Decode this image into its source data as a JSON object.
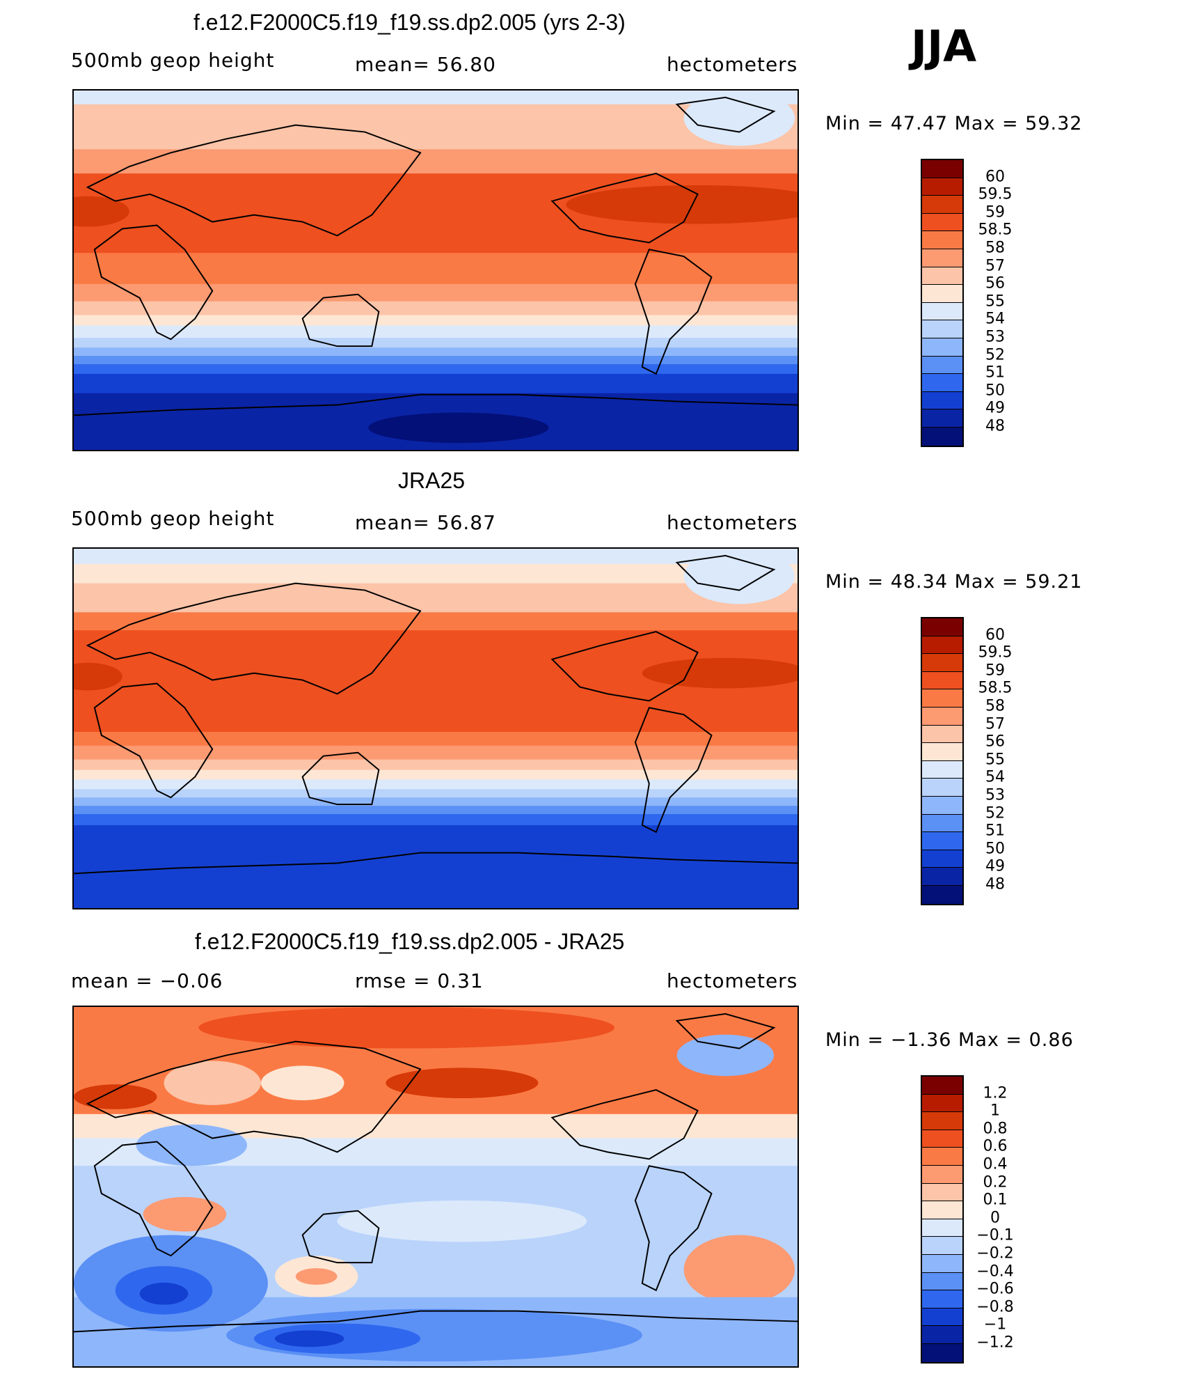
{
  "season": "JJA",
  "panels": [
    {
      "id": "model",
      "title": "f.e12.F2000C5.f19_f19.ss.dp2.005 (yrs 2-3)",
      "left_label": "500mb  geop  height",
      "center_label": "mean=   56.80",
      "right_label": "hectometers",
      "minmax": "Min  =    47.47  Max  =    59.32",
      "colorbar_labels": [
        "60",
        "59.5",
        "59",
        "58.5",
        "58",
        "57",
        "56",
        "55",
        "54",
        "53",
        "52",
        "51",
        "50",
        "49",
        "48"
      ],
      "colors": [
        "#7a0000",
        "#b81c00",
        "#d63a08",
        "#ee5020",
        "#fa7a45",
        "#fc9a72",
        "#fcc4a8",
        "#fde6d4",
        "#dbe9fb",
        "#b9d3fb",
        "#8eb6fa",
        "#5b90f5",
        "#2f68ee",
        "#1440d2",
        "#0a24a6",
        "#031078"
      ]
    },
    {
      "id": "obs",
      "title": "JRA25",
      "left_label": "500mb  geop  height",
      "center_label": "mean=   56.87",
      "right_label": "hectometers",
      "minmax": "Min  =    48.34  Max  =    59.21",
      "colorbar_labels": [
        "60",
        "59.5",
        "59",
        "58.5",
        "58",
        "57",
        "56",
        "55",
        "54",
        "53",
        "52",
        "51",
        "50",
        "49",
        "48"
      ],
      "colors": [
        "#7a0000",
        "#b81c00",
        "#d63a08",
        "#ee5020",
        "#fa7a45",
        "#fc9a72",
        "#fcc4a8",
        "#fde6d4",
        "#dbe9fb",
        "#b9d3fb",
        "#8eb6fa",
        "#5b90f5",
        "#2f68ee",
        "#1440d2",
        "#0a24a6",
        "#031078"
      ]
    },
    {
      "id": "diff",
      "title": "f.e12.F2000C5.f19_f19.ss.dp2.005 - JRA25",
      "left_label": "mean  =    −0.06",
      "center_label": "rmse  =     0.31",
      "right_label": "hectometers",
      "minmax": "Min  =    −1.36  Max  =     0.86",
      "colorbar_labels": [
        "1.2",
        "1",
        "0.8",
        "0.6",
        "0.4",
        "0.2",
        "0.1",
        "0",
        "−0.1",
        "−0.2",
        "−0.4",
        "−0.6",
        "−0.8",
        "−1",
        "−1.2"
      ],
      "colors": [
        "#7a0000",
        "#b81c00",
        "#d63a08",
        "#ee5020",
        "#fa7a45",
        "#fc9a72",
        "#fcc4a8",
        "#fde6d4",
        "#dbe9fb",
        "#b9d3fb",
        "#8eb6fa",
        "#5b90f5",
        "#2f68ee",
        "#1440d2",
        "#0a24a6",
        "#031078"
      ]
    }
  ]
}
